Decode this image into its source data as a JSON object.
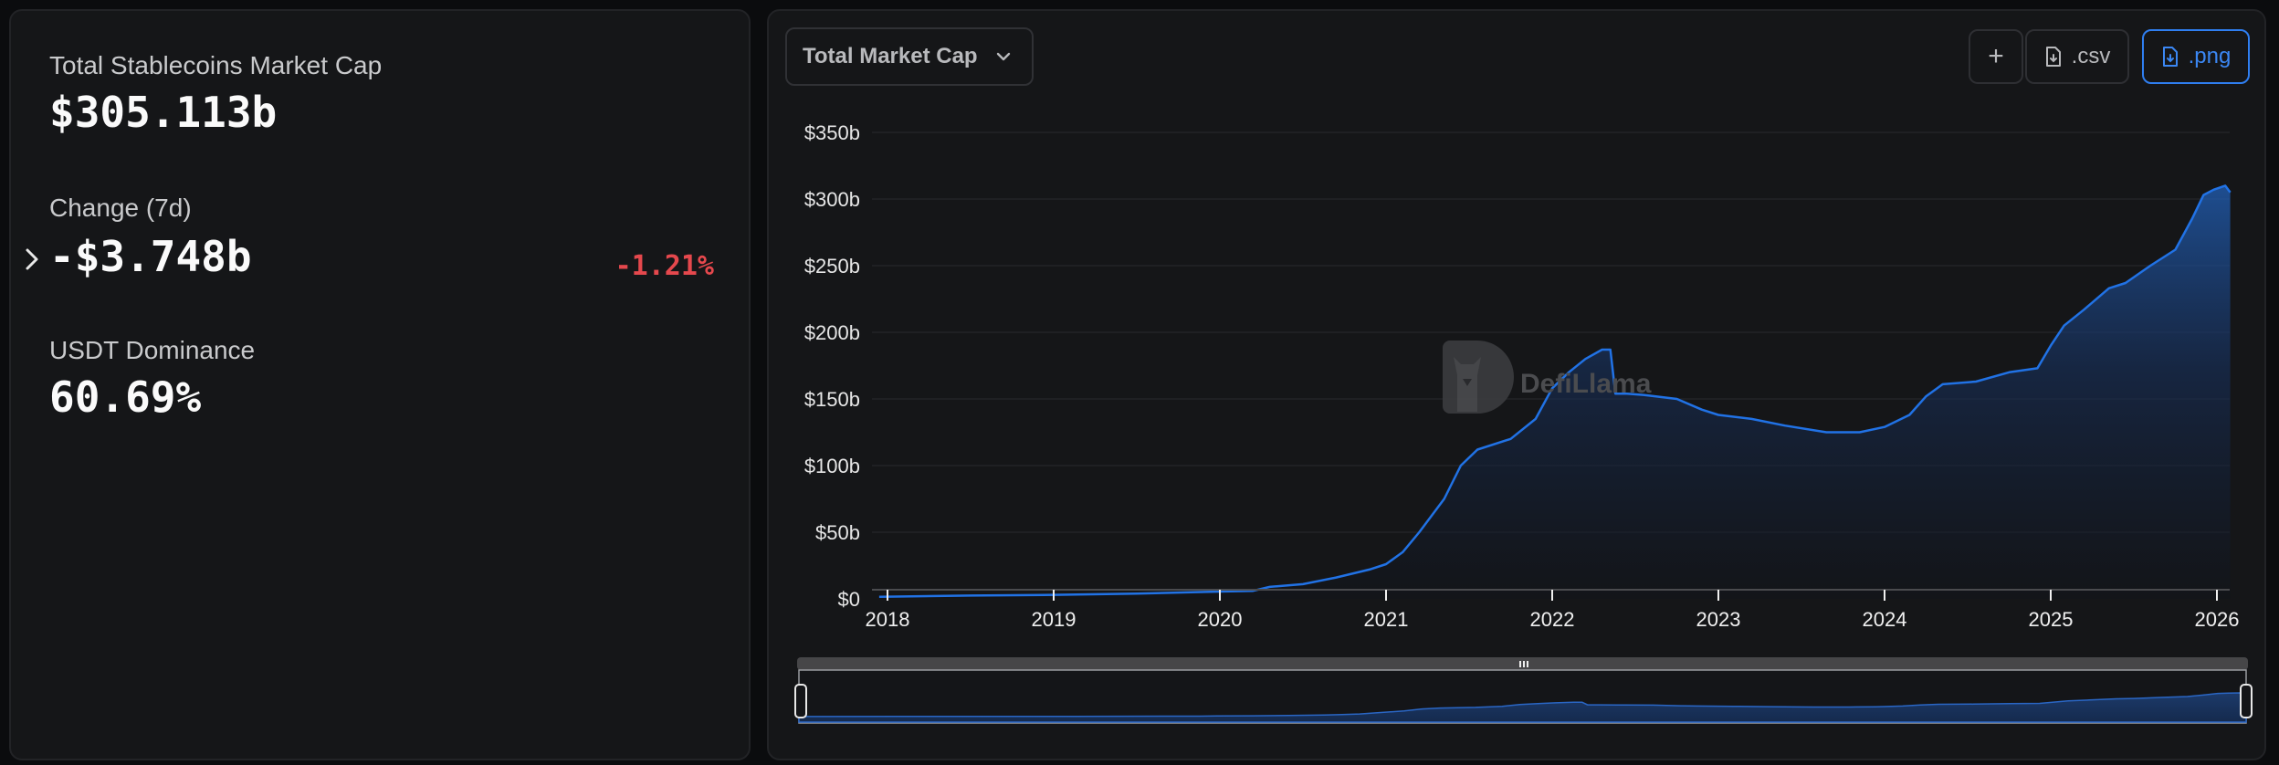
{
  "stats": {
    "market_cap_label": "Total Stablecoins Market Cap",
    "market_cap_value": "$305.113b",
    "change_label": "Change (7d)",
    "change_value": "-$3.748b",
    "change_pct": "-1.21%",
    "dominance_label": "USDT Dominance",
    "dominance_value": "60.69%"
  },
  "toolbar": {
    "dropdown_label": "Total Market Cap",
    "add_label": "+",
    "csv_label": ".csv",
    "png_label": ".png"
  },
  "watermark": "DefiLlama",
  "colors": {
    "line": "#2172e5",
    "negative": "#e5484d",
    "accent": "#2f7ef0"
  },
  "chart_data": {
    "type": "area",
    "title": "Total Market Cap",
    "xlabel": "",
    "ylabel": "",
    "ylim": [
      0,
      350
    ],
    "y_ticks": [
      "$0",
      "$50b",
      "$100b",
      "$150b",
      "$200b",
      "$250b",
      "$300b",
      "$350b"
    ],
    "x_ticks": [
      "2018",
      "2019",
      "2020",
      "2021",
      "2022",
      "2023",
      "2024",
      "2025",
      "2026"
    ],
    "grid": true,
    "legend": "none",
    "series": [
      {
        "name": "Total Stablecoins Market Cap ($b)",
        "x": [
          2017.95,
          2018.5,
          2019.0,
          2019.5,
          2020.0,
          2020.2,
          2020.3,
          2020.5,
          2020.7,
          2020.9,
          2021.0,
          2021.1,
          2021.2,
          2021.35,
          2021.45,
          2021.55,
          2021.75,
          2021.9,
          2022.0,
          2022.1,
          2022.2,
          2022.3,
          2022.35,
          2022.38,
          2022.45,
          2022.55,
          2022.75,
          2022.9,
          2023.0,
          2023.2,
          2023.4,
          2023.65,
          2023.85,
          2024.0,
          2024.15,
          2024.25,
          2024.35,
          2024.55,
          2024.75,
          2024.92,
          2025.0,
          2025.08,
          2025.2,
          2025.35,
          2025.45,
          2025.6,
          2025.75,
          2025.85,
          2025.92,
          2025.98,
          2026.05,
          2026.08
        ],
        "values": [
          1.5,
          2.5,
          3,
          4,
          5.5,
          6,
          9,
          11,
          16,
          22,
          26,
          35,
          50,
          75,
          100,
          112,
          120,
          135,
          158,
          170,
          180,
          187,
          187,
          154,
          154,
          153,
          150,
          142,
          138,
          135,
          130,
          125,
          125,
          129,
          138,
          152,
          161,
          163,
          170,
          173,
          190,
          205,
          217,
          233,
          237,
          250,
          262,
          285,
          303,
          307,
          310,
          305
        ]
      }
    ]
  }
}
